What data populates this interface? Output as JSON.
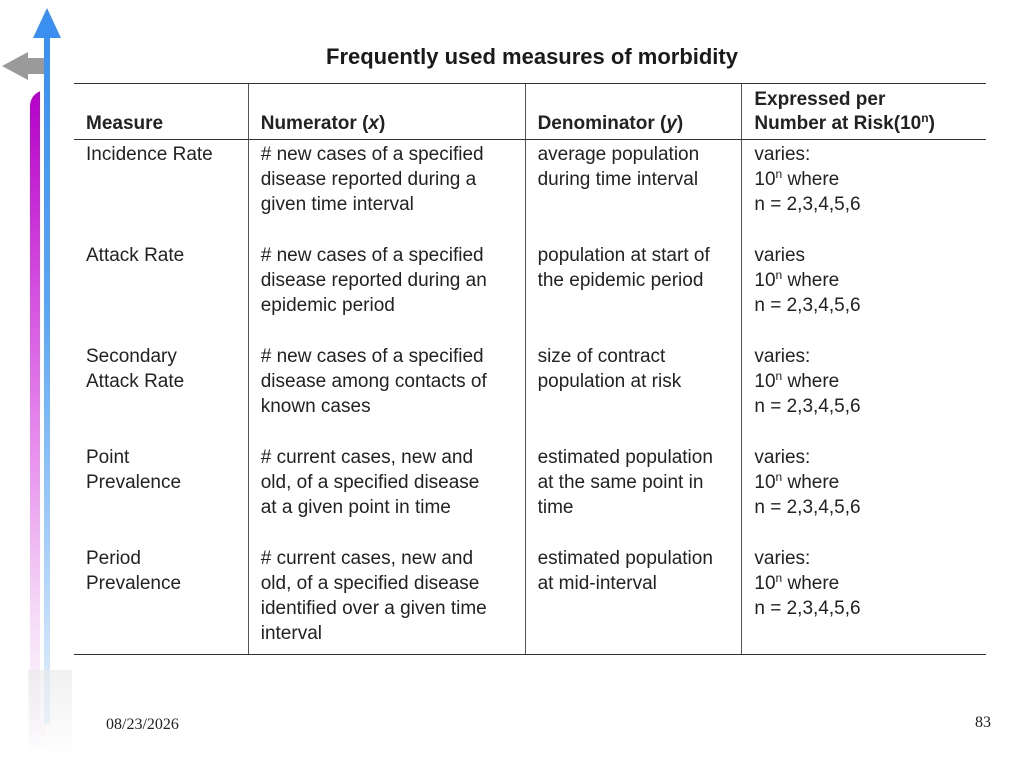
{
  "slide": {
    "title": "Frequently used measures of morbidity",
    "date": "08/23/2026",
    "page_number": "83"
  },
  "table": {
    "headers": {
      "measure": "Measure",
      "numerator_prefix": "Numerator (",
      "numerator_var": "x",
      "numerator_suffix": ")",
      "denominator_prefix": "Denominator (",
      "denominator_var": "y",
      "denominator_suffix": ")",
      "expressed_line1": "Expressed per",
      "expressed_line2_prefix": "Number at Risk(10",
      "expressed_line2_sup": "n",
      "expressed_line2_suffix": ")"
    },
    "rows": [
      {
        "measure": [
          "Incidence Rate"
        ],
        "numerator": [
          "# new cases of a specified",
          "disease reported during a",
          "given time interval"
        ],
        "denominator": [
          "average population",
          "during time interval"
        ],
        "expressed": {
          "label": "varies:",
          "base": "10",
          "sup": "n",
          "where": " where",
          "n_values": "n = 2,3,4,5,6"
        }
      },
      {
        "measure": [
          "Attack Rate"
        ],
        "numerator": [
          "# new cases of a specified",
          "disease reported during an",
          "epidemic period"
        ],
        "denominator": [
          "population at start of",
          "the epidemic period"
        ],
        "expressed": {
          "label": "varies",
          "base": "10",
          "sup": "n",
          "where": " where",
          "n_values": "n = 2,3,4,5,6"
        }
      },
      {
        "measure": [
          "Secondary",
          "Attack Rate"
        ],
        "numerator": [
          "# new cases of a specified",
          "disease among contacts of",
          "known cases"
        ],
        "denominator": [
          "size of contract",
          "population at risk"
        ],
        "expressed": {
          "label": "varies:",
          "base": "10",
          "sup": "n",
          "where": " where",
          "n_values": "n = 2,3,4,5,6"
        }
      },
      {
        "measure": [
          "Point",
          "Prevalence"
        ],
        "numerator": [
          "# current cases, new and",
          "old, of a specified disease",
          "at a given point in time"
        ],
        "denominator": [
          "estimated population",
          "at the same point in",
          "time"
        ],
        "expressed": {
          "label": "varies:",
          "base": "10",
          "sup": "n",
          "where": " where",
          "n_values": "n = 2,3,4,5,6"
        }
      },
      {
        "measure": [
          "Period",
          "Prevalence"
        ],
        "numerator": [
          "# current cases, new and",
          "old, of a specified disease",
          "identified over a given time",
          "interval"
        ],
        "denominator": [
          "estimated population",
          "at mid-interval"
        ],
        "expressed": {
          "label": "varies:",
          "base": "10",
          "sup": "n",
          "where": " where",
          "n_values": "n = 2,3,4,5,6"
        }
      }
    ]
  },
  "colors": {
    "accent_magenta": "#b400c8",
    "accent_blue": "#3a8ff0",
    "arrow_gray": "#9a9a9a"
  },
  "icons": {
    "up_arrow": "arrow-up-icon",
    "left_arrow": "arrow-left-icon"
  }
}
